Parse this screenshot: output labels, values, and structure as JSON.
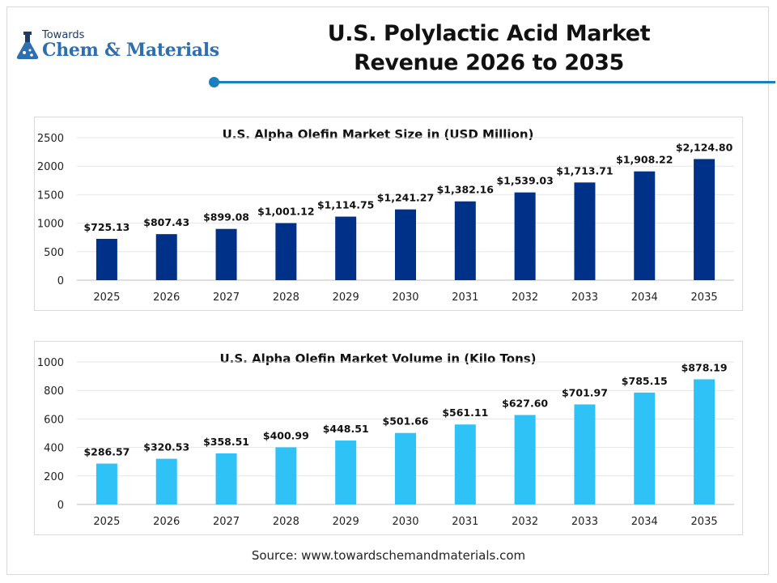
{
  "header": {
    "logo_top": "Towards",
    "logo_brand": "Chem & Materials",
    "title_line1": "U.S. Polylactic Acid Market",
    "title_line2": "Revenue 2026 to 2035",
    "accent_color": "#1a7fc1"
  },
  "footer": {
    "source": "Source: www.towardschemandmaterials.com"
  },
  "chart_data": [
    {
      "type": "bar",
      "title": "U.S. Alpha Olefin Market Size in (USD Million)",
      "categories": [
        "2025",
        "2026",
        "2027",
        "2028",
        "2029",
        "2030",
        "2031",
        "2032",
        "2033",
        "2034",
        "2035"
      ],
      "values": [
        725.13,
        807.43,
        899.08,
        1001.12,
        1114.75,
        1241.27,
        1382.16,
        1539.03,
        1713.71,
        1908.22,
        2124.8
      ],
      "data_labels": [
        "$725.13",
        "$807.43",
        "$899.08",
        "$1,001.12",
        "$1,114.75",
        "$1,241.27",
        "$1,382.16",
        "$1,539.03",
        "$1,713.71",
        "$1,908.22",
        "$2,124.80"
      ],
      "yticks": [
        "0",
        "500",
        "1000",
        "1500",
        "2000",
        "2500"
      ],
      "ylim": [
        0,
        2500
      ],
      "grid": true,
      "color": "#003189"
    },
    {
      "type": "bar",
      "title": "U.S. Alpha Olefin Market Volume in (Kilo Tons)",
      "categories": [
        "2025",
        "2026",
        "2027",
        "2028",
        "2029",
        "2030",
        "2031",
        "2032",
        "2033",
        "2034",
        "2035"
      ],
      "values": [
        286.57,
        320.53,
        358.51,
        400.99,
        448.51,
        501.66,
        561.11,
        627.6,
        701.97,
        785.15,
        878.19
      ],
      "data_labels": [
        "$286.57",
        "$320.53",
        "$358.51",
        "$400.99",
        "$448.51",
        "$501.66",
        "$561.11",
        "$627.60",
        "$701.97",
        "$785.15",
        "$878.19"
      ],
      "yticks": [
        "0",
        "200",
        "400",
        "600",
        "800",
        "1000"
      ],
      "ylim": [
        0,
        1000
      ],
      "grid": true,
      "color": "#2ec2f6"
    }
  ]
}
